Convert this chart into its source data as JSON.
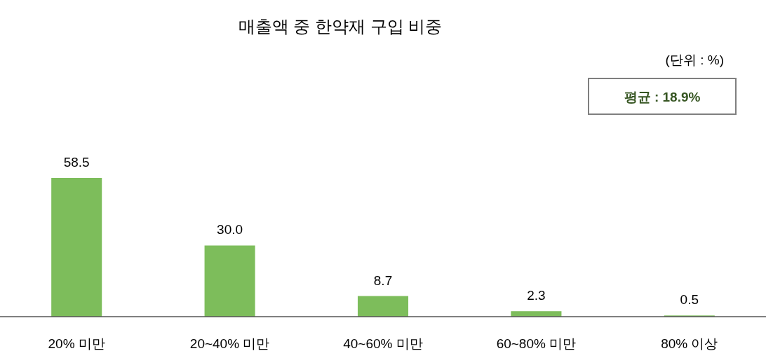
{
  "chart_data": {
    "type": "bar",
    "title": "매출액 중 한약재 구입 비중",
    "categories": [
      "20% 미만",
      "20~40% 미만",
      "40~60% 미만",
      "60~80% 미만",
      "80% 이상"
    ],
    "values": [
      58.5,
      30.0,
      8.7,
      2.3,
      0.5
    ],
    "value_labels": [
      "58.5",
      "30.0",
      "8.7",
      "2.3",
      "0.5"
    ],
    "color": "#7dbd5b",
    "annotations": [
      "(단위 : %)",
      "평균 : 18.9%"
    ]
  }
}
